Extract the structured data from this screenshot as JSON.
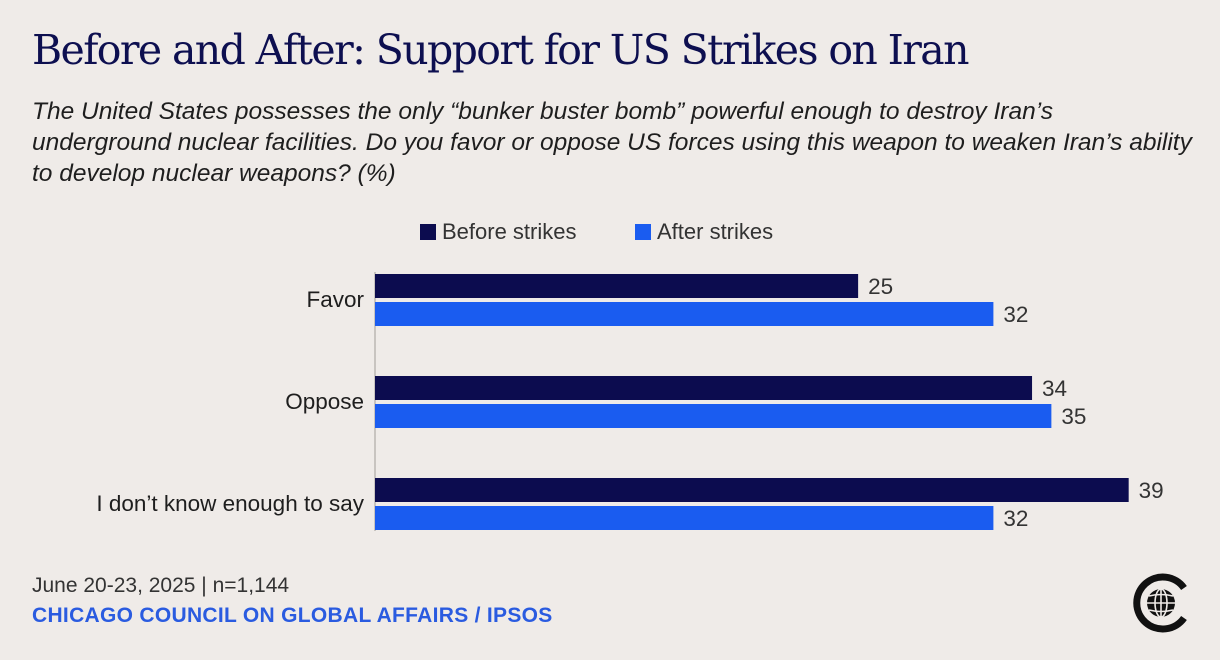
{
  "header": {
    "title": "Before and After: Support for US Strikes on Iran",
    "subtitle": "The United States possesses the only “bunker buster bomb” powerful enough to destroy Iran’s underground nuclear facilities. Do you favor or oppose US forces using this weapon to weaken Iran’s ability to develop nuclear weapons? (%)"
  },
  "chart_data": {
    "type": "bar",
    "orientation": "horizontal",
    "categories": [
      "Favor",
      "Oppose",
      "I don’t know enough to say"
    ],
    "series": [
      {
        "name": "Before strikes",
        "values": [
          25,
          34,
          39
        ],
        "color": "#0c0c4f"
      },
      {
        "name": "After strikes",
        "values": [
          32,
          35,
          32
        ],
        "color": "#1a5cf0"
      }
    ],
    "xlim": [
      0,
      40
    ],
    "grid": false,
    "legend_position": "top-center",
    "data_labels": true
  },
  "footer": {
    "date_sample": "June 20-23, 2025 | n=1,144",
    "source": "CHICAGO COUNCIL ON GLOBAL AFFAIRS / IPSOS"
  },
  "logo": {
    "icon": "chicago-council-globe-logo",
    "color": "#111111"
  }
}
